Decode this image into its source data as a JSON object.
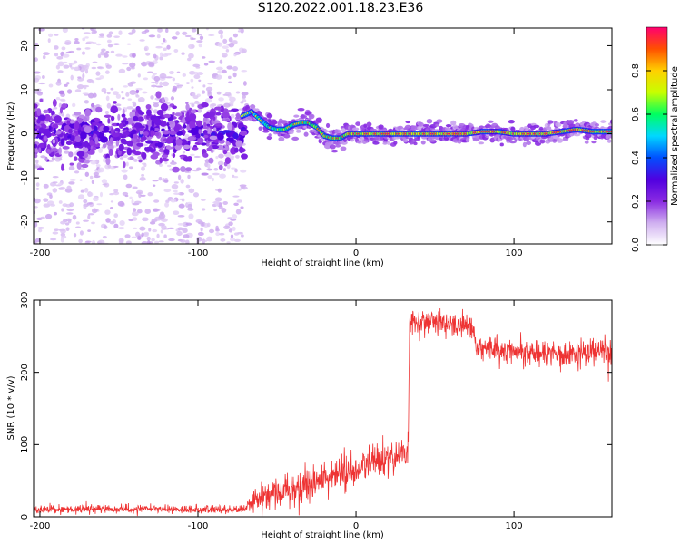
{
  "title": "S120.2022.001.18.23.E36",
  "chart_data": [
    {
      "type": "heatmap",
      "xlabel": "Height of straight line (km)",
      "ylabel": "Frequency (Hz)",
      "xlim": [
        -204,
        162
      ],
      "ylim": [
        -25,
        24
      ],
      "xticks": [
        -200,
        -100,
        0,
        100
      ],
      "xtick_labels": [
        "-200",
        "-100",
        "0",
        "100"
      ],
      "yticks": [
        -20,
        -10,
        0,
        10,
        20
      ],
      "ytick_labels": [
        "-20",
        "-10",
        "0",
        "10",
        "20"
      ],
      "grid": false,
      "ridge": {
        "x": [
          -72,
          -66,
          -60,
          -55,
          -50,
          -45,
          -40,
          -35,
          -30,
          -25,
          -20,
          -15,
          -10,
          -5,
          0,
          10,
          20,
          30,
          40,
          50,
          60,
          70,
          80,
          90,
          100,
          110,
          120,
          130,
          140,
          150,
          160
        ],
        "y": [
          4,
          5,
          3,
          1.5,
          1,
          1,
          2,
          2.5,
          2.5,
          1.5,
          -0.5,
          -1,
          -1,
          0,
          0,
          0,
          0,
          0,
          0,
          0,
          0,
          0,
          0.5,
          0.5,
          0,
          0,
          0,
          0.5,
          1,
          0.5,
          0.5
        ]
      },
      "scatter_band": {
        "x_range": [
          -204,
          -70
        ],
        "core_freq_range": [
          -8,
          8
        ],
        "outer_freq_range": [
          -25,
          24
        ]
      }
    },
    {
      "type": "colorbar",
      "label": "Normalized spectral amplitude",
      "range": [
        0,
        1
      ],
      "ticks": [
        0,
        0.2,
        0.4,
        0.6,
        0.8
      ],
      "tick_labels": [
        "0.0",
        "0.2",
        "0.4",
        "0.6",
        "0.8"
      ],
      "colors": [
        "#ffffff",
        "#d0b0f0",
        "#8a2be2",
        "#5000e0",
        "#0050ff",
        "#00d8ff",
        "#00ff60",
        "#c8ff00",
        "#ffd000",
        "#ff5000",
        "#ff0070"
      ]
    },
    {
      "type": "line",
      "xlabel": "Height of straight line (km)",
      "ylabel": "SNR (10 * v/v)",
      "xlim": [
        -204,
        162
      ],
      "ylim": [
        0,
        300
      ],
      "xticks": [
        -200,
        -100,
        0,
        100
      ],
      "xtick_labels": [
        "-200",
        "-100",
        "0",
        "100"
      ],
      "yticks": [
        0,
        100,
        200,
        300
      ],
      "ytick_labels": [
        "0",
        "100",
        "200",
        "300"
      ],
      "grid": false,
      "series": [
        {
          "color": "#ee3333",
          "x": [
            -204,
            -180,
            -150,
            -120,
            -90,
            -72,
            -62,
            -50,
            -40,
            -30,
            -20,
            -10,
            0,
            10,
            20,
            32,
            33,
            34,
            45,
            55,
            65,
            75,
            76,
            90,
            110,
            130,
            150,
            162
          ],
          "y": [
            10,
            10,
            11,
            10,
            10,
            10,
            25,
            33,
            38,
            45,
            52,
            58,
            65,
            72,
            80,
            88,
            100,
            270,
            270,
            268,
            265,
            262,
            235,
            232,
            228,
            225,
            230,
            230
          ],
          "noise": [
            3,
            3,
            3,
            3,
            3,
            3,
            9,
            11,
            12,
            13,
            14,
            14,
            14,
            14,
            14,
            14,
            14,
            9,
            9,
            9,
            9,
            9,
            10,
            10,
            10,
            10,
            11,
            11
          ]
        }
      ]
    }
  ]
}
